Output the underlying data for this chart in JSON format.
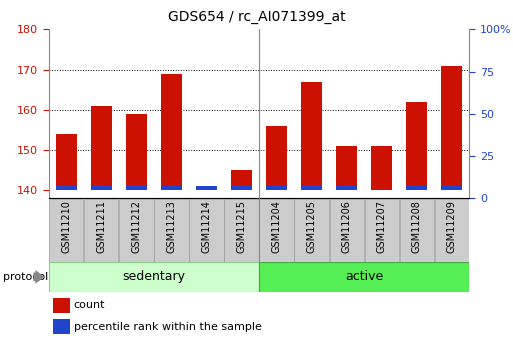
{
  "title": "GDS654 / rc_AI071399_at",
  "samples": [
    "GSM11210",
    "GSM11211",
    "GSM11212",
    "GSM11213",
    "GSM11214",
    "GSM11215",
    "GSM11204",
    "GSM11205",
    "GSM11206",
    "GSM11207",
    "GSM11208",
    "GSM11209"
  ],
  "count_values": [
    154,
    161,
    159,
    169,
    141,
    145,
    156,
    167,
    151,
    151,
    162,
    171
  ],
  "percentile_values": [
    2.5,
    2.5,
    2.5,
    2.5,
    2.5,
    2.5,
    2.5,
    2.5,
    2.5,
    1.0,
    2.5,
    2.5
  ],
  "ylim_left": [
    138,
    180
  ],
  "ylim_right": [
    0,
    100
  ],
  "yticks_left": [
    140,
    150,
    160,
    170,
    180
  ],
  "yticks_right": [
    0,
    25,
    50,
    75,
    100
  ],
  "bar_bottom": 140,
  "groups": [
    {
      "label": "sedentary",
      "start": 0,
      "end": 6,
      "color": "#ccffcc"
    },
    {
      "label": "active",
      "start": 6,
      "end": 12,
      "color": "#55ee55"
    }
  ],
  "protocol_label": "protocol",
  "red_color": "#cc1100",
  "blue_color": "#2244cc",
  "title_fontsize": 10,
  "tick_label_fontsize": 7,
  "axis_label_color_left": "#cc1100",
  "axis_label_color_right": "#2244cc",
  "legend_count": "count",
  "legend_percentile": "percentile rank within the sample",
  "background_color": "#ffffff",
  "plot_bg_color": "#ffffff",
  "sample_box_color": "#cccccc",
  "sample_box_edge": "#999999",
  "gridline_color": "#000000",
  "bar_width": 0.6
}
